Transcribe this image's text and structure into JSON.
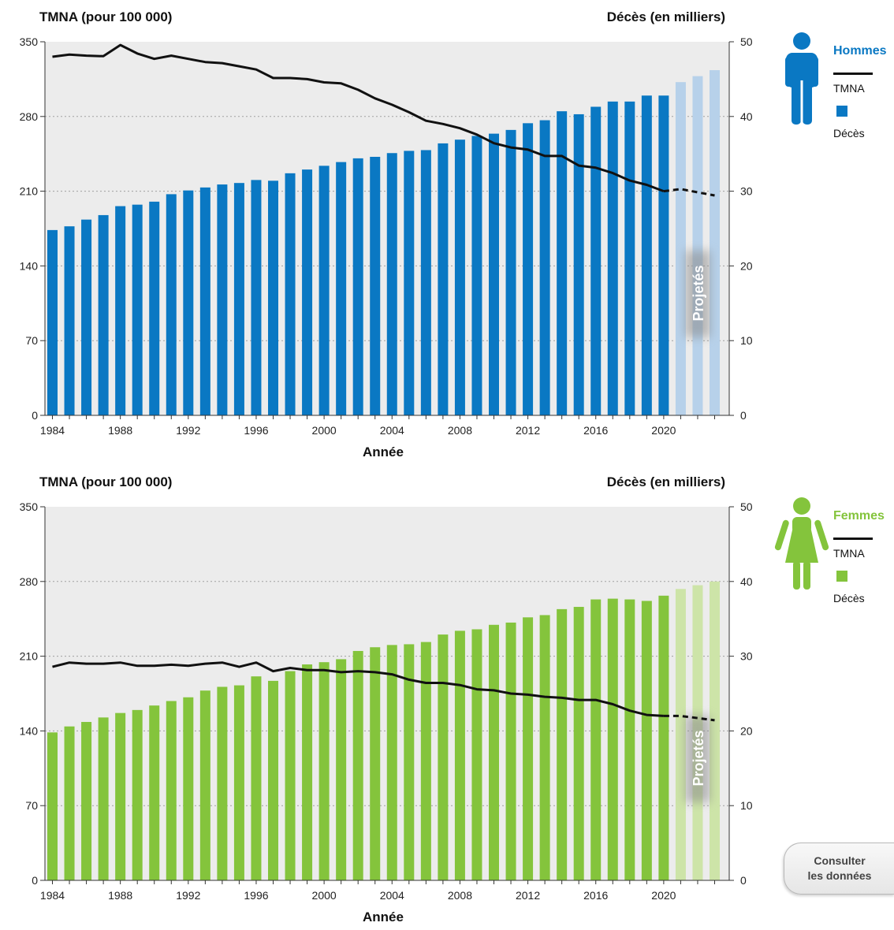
{
  "colors": {
    "men_bar": "#0a78c3",
    "men_bar_projected": "#b7d1ea",
    "women_bar": "#84c43c",
    "women_bar_projected": "#cde4a8",
    "line": "#111111",
    "plot_bg": "#ececec"
  },
  "button": {
    "line1": "Consulter",
    "line2": "les données",
    "icon": "none"
  },
  "chart_data": [
    {
      "type": "bar",
      "sex_label": "Hommes",
      "icon": "male-person-icon",
      "left_title": "TMNA (pour 100 000)",
      "right_title": "Décès (en milliers)",
      "xlabel": "Année",
      "projected_label": "Projetés",
      "x_ticks": [
        "1984",
        "1988",
        "1992",
        "1996",
        "2000",
        "2004",
        "2008",
        "2012",
        "2016",
        "2020"
      ],
      "y_left": {
        "ticks": [
          "0",
          "70",
          "140",
          "210",
          "280",
          "350"
        ],
        "range": [
          0,
          350
        ]
      },
      "y_right": {
        "ticks": [
          "0",
          "10",
          "20",
          "30",
          "40",
          "50"
        ],
        "range": [
          0,
          50
        ]
      },
      "x": [
        1984,
        1985,
        1986,
        1987,
        1988,
        1989,
        1990,
        1991,
        1992,
        1993,
        1994,
        1995,
        1996,
        1997,
        1998,
        1999,
        2000,
        2001,
        2002,
        2003,
        2004,
        2005,
        2006,
        2007,
        2008,
        2009,
        2010,
        2011,
        2012,
        2013,
        2014,
        2015,
        2016,
        2017,
        2018,
        2019,
        2020,
        2021,
        2022,
        2023
      ],
      "projected_from": 2021,
      "legend": {
        "line": "TMNA",
        "bars": "Décès"
      },
      "series": [
        {
          "name": "Décès",
          "axis": "right",
          "values": [
            24.8,
            25.3,
            26.2,
            26.8,
            28.0,
            28.2,
            28.6,
            29.6,
            30.1,
            30.5,
            30.9,
            31.1,
            31.5,
            31.4,
            32.4,
            32.9,
            33.4,
            33.9,
            34.4,
            34.6,
            35.1,
            35.4,
            35.5,
            36.4,
            36.9,
            37.4,
            37.7,
            38.2,
            39.1,
            39.5,
            40.7,
            40.3,
            41.3,
            42.0,
            42.0,
            42.8,
            42.8,
            44.6,
            45.4,
            46.2
          ]
        },
        {
          "name": "TMNA",
          "axis": "left",
          "values": [
            336,
            338,
            337,
            336.5,
            347,
            339,
            334,
            337,
            334,
            331,
            330,
            327,
            324,
            316,
            316,
            315,
            312,
            311,
            305,
            297,
            291,
            284,
            276,
            273,
            269,
            263,
            255,
            251,
            249,
            243,
            243,
            234,
            232,
            227,
            220,
            216,
            210,
            212,
            209,
            206
          ]
        }
      ]
    },
    {
      "type": "bar",
      "sex_label": "Femmes",
      "icon": "female-person-icon",
      "left_title": "TMNA (pour 100 000)",
      "right_title": "Décès (en milliers)",
      "xlabel": "Année",
      "projected_label": "Projetés",
      "x_ticks": [
        "1984",
        "1988",
        "1992",
        "1996",
        "2000",
        "2004",
        "2008",
        "2012",
        "2016",
        "2020"
      ],
      "y_left": {
        "ticks": [
          "0",
          "70",
          "140",
          "210",
          "280",
          "350"
        ],
        "range": [
          0,
          350
        ]
      },
      "y_right": {
        "ticks": [
          "0",
          "10",
          "20",
          "30",
          "40",
          "50"
        ],
        "range": [
          0,
          50
        ]
      },
      "x": [
        1984,
        1985,
        1986,
        1987,
        1988,
        1989,
        1990,
        1991,
        1992,
        1993,
        1994,
        1995,
        1996,
        1997,
        1998,
        1999,
        2000,
        2001,
        2002,
        2003,
        2004,
        2005,
        2006,
        2007,
        2008,
        2009,
        2010,
        2011,
        2012,
        2013,
        2014,
        2015,
        2016,
        2017,
        2018,
        2019,
        2020,
        2021,
        2022,
        2023
      ],
      "projected_from": 2021,
      "legend": {
        "line": "TMNA",
        "bars": "Décès"
      },
      "series": [
        {
          "name": "Décès",
          "axis": "right",
          "values": [
            19.8,
            20.6,
            21.2,
            21.8,
            22.4,
            22.8,
            23.4,
            24.0,
            24.5,
            25.4,
            25.9,
            26.1,
            27.3,
            26.7,
            28.0,
            28.9,
            29.2,
            29.6,
            30.7,
            31.2,
            31.5,
            31.6,
            31.9,
            32.9,
            33.4,
            33.6,
            34.2,
            34.5,
            35.2,
            35.5,
            36.3,
            36.6,
            37.6,
            37.7,
            37.6,
            37.4,
            38.1,
            39.0,
            39.5,
            40.0
          ]
        },
        {
          "name": "TMNA",
          "axis": "left",
          "values": [
            200,
            204,
            203,
            203,
            204,
            201,
            201,
            202,
            201,
            203,
            204,
            200,
            204,
            196,
            199,
            197,
            197,
            195,
            196,
            195,
            193,
            188,
            185,
            185,
            183,
            179,
            178,
            175,
            174,
            172,
            171,
            169,
            169,
            165,
            159,
            155,
            154,
            154,
            152,
            150
          ]
        }
      ]
    }
  ]
}
